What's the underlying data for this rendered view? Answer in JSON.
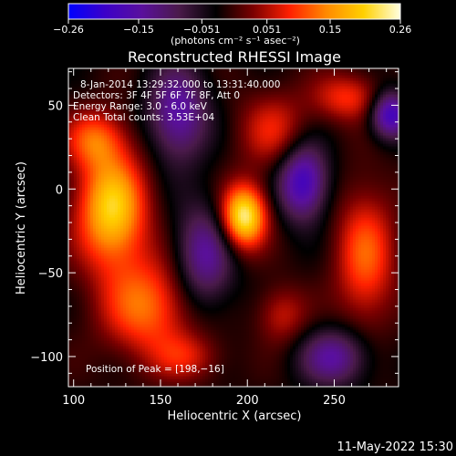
{
  "chart_data": {
    "type": "heatmap",
    "title": "Reconstructed RHESSI Image",
    "xlabel": "Heliocentric X (arcsec)",
    "ylabel": "Heliocentric Y (arcsec)",
    "xlim": [
      97,
      287
    ],
    "ylim": [
      -118,
      72
    ],
    "x_ticks": [
      100,
      150,
      200,
      250
    ],
    "x_tick_labels": [
      "100",
      "150",
      "200",
      "250"
    ],
    "y_ticks": [
      50,
      0,
      -50,
      -100
    ],
    "y_tick_labels": [
      "50",
      "0",
      "−50",
      "−100"
    ],
    "colorbar": {
      "range": [
        -0.26,
        0.26
      ],
      "ticks": [
        -0.26,
        -0.15,
        -0.051,
        0.051,
        0.15,
        0.26
      ],
      "tick_labels": [
        "−0.26",
        "−0.15",
        "−0.051",
        "0.051",
        "0.15",
        "0.26"
      ],
      "unit_label": "(photons cm⁻² s⁻¹ asec⁻²)",
      "colors": [
        "#0000ff",
        "#3c00c8",
        "#5a109c",
        "#4a1a4a",
        "#000000",
        "#7a0000",
        "#ff2000",
        "#ff8a00",
        "#ffd000",
        "#ffffe0"
      ]
    },
    "annotations": [
      "8‐Jan‐2014 13:29:32.000 to 13:31:40.000",
      "Detectors: 3F 4F 5F 6F 7F 8F, Att 0",
      "Energy Range: 3.0 ‐ 6.0 keV",
      "Clean    Total counts: 3.53E+04"
    ],
    "peak_label": "Position of Peak = [198,−16]",
    "peak": [
      198,
      -16
    ],
    "sources": [
      {
        "x": 198,
        "y": -16,
        "amp": 1.0,
        "sx": 9,
        "sy": 13
      },
      {
        "x": 122,
        "y": -12,
        "amp": 0.85,
        "sx": 14,
        "sy": 24
      },
      {
        "x": 112,
        "y": 30,
        "amp": 0.45,
        "sx": 12,
        "sy": 12
      },
      {
        "x": 142,
        "y": -70,
        "amp": 0.55,
        "sx": 18,
        "sy": 20
      },
      {
        "x": 268,
        "y": -40,
        "amp": 0.5,
        "sx": 12,
        "sy": 28
      },
      {
        "x": 258,
        "y": 55,
        "amp": 0.4,
        "sx": 14,
        "sy": 10
      },
      {
        "x": 215,
        "y": 35,
        "amp": 0.35,
        "sx": 14,
        "sy": 16
      },
      {
        "x": 220,
        "y": -75,
        "amp": 0.3,
        "sx": 10,
        "sy": 12
      },
      {
        "x": 165,
        "y": -100,
        "amp": 0.3,
        "sx": 14,
        "sy": 10
      },
      {
        "x": 160,
        "y": 45,
        "amp": -0.55,
        "sx": 12,
        "sy": 20
      },
      {
        "x": 232,
        "y": 5,
        "amp": -0.7,
        "sx": 10,
        "sy": 16
      },
      {
        "x": 282,
        "y": 45,
        "amp": -0.7,
        "sx": 8,
        "sy": 10
      },
      {
        "x": 250,
        "y": -100,
        "amp": -0.5,
        "sx": 14,
        "sy": 12
      },
      {
        "x": 175,
        "y": -40,
        "amp": -0.5,
        "sx": 12,
        "sy": 22
      }
    ]
  },
  "footer": {
    "timestamp": "11‐May‐2022 15:30"
  }
}
